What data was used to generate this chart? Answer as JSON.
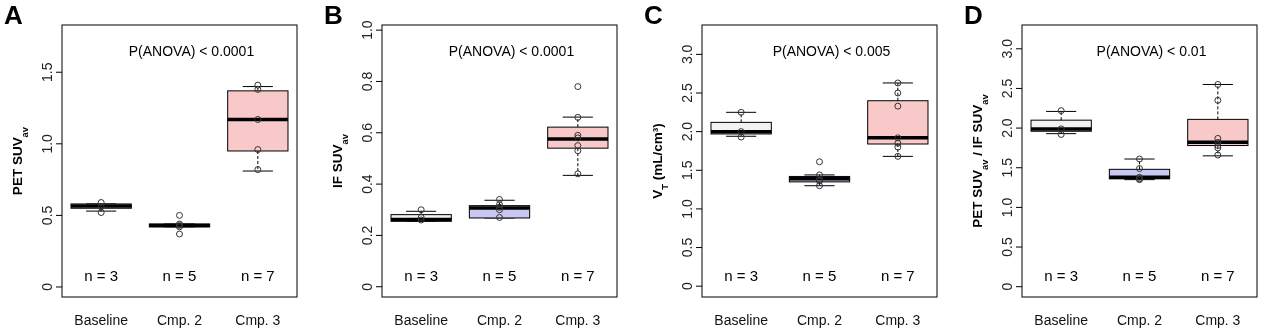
{
  "chart_data": [
    {
      "type": "box",
      "title": "A",
      "ylabel": "PET SUV$_{av}$",
      "categories": [
        "Baseline",
        "Cmp. 2",
        "Cmp. 3"
      ],
      "colors": [
        "#f2f2f2",
        "#c8c8f2",
        "#f9c9c9"
      ],
      "boxes": [
        {
          "low": 0.53,
          "q1": 0.55,
          "median": 0.565,
          "q3": 0.58,
          "high": 0.58
        },
        {
          "low": 0.42,
          "q1": 0.42,
          "median": 0.43,
          "q3": 0.44,
          "high": 0.44
        },
        {
          "low": 0.81,
          "q1": 0.95,
          "median": 1.17,
          "q3": 1.37,
          "high": 1.4
        }
      ],
      "series": [
        {
          "type": "scatter",
          "color": "#333333",
          "x": [
            "Baseline",
            "Baseline",
            "Baseline",
            "Cmp. 2",
            "Cmp. 2",
            "Cmp. 2",
            "Cmp. 2",
            "Cmp. 2",
            "Cmp. 3",
            "Cmp. 3",
            "Cmp. 3",
            "Cmp. 3",
            "Cmp. 3"
          ],
          "values": [
            0.52,
            0.56,
            0.59,
            0.37,
            0.42,
            0.43,
            0.44,
            0.5,
            1.41,
            1.38,
            1.17,
            0.96,
            0.82
          ]
        }
      ],
      "marker": "circle",
      "ylim": [
        -0.07,
        1.83
      ],
      "yticks": [
        0,
        0.5,
        {
          "value": 1,
          "label": "1.0"
        },
        1.5
      ],
      "annotations": [
        "P(ANOVA) < 0.0001",
        "n = 3",
        "n = 5",
        "n = 7"
      ]
    },
    {
      "type": "box",
      "title": "B",
      "ylabel": "IF SUV$_{av}$",
      "categories": [
        "Baseline",
        "Cmp. 2",
        "Cmp. 3"
      ],
      "colors": [
        "#f2f2f2",
        "#c8c8f2",
        "#f9c9c9"
      ],
      "boxes": [
        {
          "low": 0.255,
          "q1": 0.255,
          "median": 0.262,
          "q3": 0.281,
          "high": 0.294
        },
        {
          "low": 0.268,
          "q1": 0.268,
          "median": 0.307,
          "q3": 0.316,
          "high": 0.337
        },
        {
          "low": 0.434,
          "q1": 0.54,
          "median": 0.576,
          "q3": 0.622,
          "high": 0.661
        }
      ],
      "series": [
        {
          "type": "scatter",
          "color": "#333333",
          "x": [
            "Baseline",
            "Baseline",
            "Baseline",
            "Cmp. 2",
            "Cmp. 2",
            "Cmp. 2",
            "Cmp. 2",
            "Cmp. 2",
            "Cmp. 3",
            "Cmp. 3",
            "Cmp. 3",
            "Cmp. 3",
            "Cmp. 3",
            "Cmp. 3",
            "Cmp. 3"
          ],
          "values": [
            0.3,
            0.27,
            0.26,
            0.34,
            0.32,
            0.31,
            0.3,
            0.27,
            0.78,
            0.66,
            0.59,
            0.58,
            0.55,
            0.53,
            0.44
          ]
        }
      ],
      "marker": "circle",
      "ylim": [
        -0.04,
        1.02
      ],
      "yticks": [
        0,
        0.2,
        0.4,
        0.6,
        0.8,
        {
          "value": 1,
          "label": "1.0"
        }
      ],
      "annotations": [
        "P(ANOVA) < 0.0001",
        "n = 3",
        "n = 5",
        "n = 7"
      ]
    },
    {
      "type": "box",
      "title": "C",
      "ylabel": "V$_{T}$ (mL/cm³)",
      "categories": [
        "Baseline",
        "Cmp. 2",
        "Cmp. 3"
      ],
      "colors": [
        "#f2f2f2",
        "#c8c8f2",
        "#f9c9c9"
      ],
      "boxes": [
        {
          "low": 1.94,
          "q1": 1.97,
          "median": 2.0,
          "q3": 2.12,
          "high": 2.25
        },
        {
          "low": 1.3,
          "q1": 1.35,
          "median": 1.39,
          "q3": 1.42,
          "high": 1.44
        },
        {
          "low": 1.68,
          "q1": 1.84,
          "median": 1.92,
          "q3": 2.4,
          "high": 2.63
        }
      ],
      "series": [
        {
          "type": "scatter",
          "color": "#333333",
          "x": [
            "Baseline",
            "Baseline",
            "Baseline",
            "Cmp. 2",
            "Cmp. 2",
            "Cmp. 2",
            "Cmp. 2",
            "Cmp. 2",
            "Cmp. 3",
            "Cmp. 3",
            "Cmp. 3",
            "Cmp. 3",
            "Cmp. 3",
            "Cmp. 3",
            "Cmp. 3"
          ],
          "values": [
            2.25,
            2.0,
            1.93,
            1.61,
            1.44,
            1.38,
            1.36,
            1.3,
            2.63,
            2.5,
            2.33,
            1.92,
            1.85,
            1.8,
            1.68
          ]
        }
      ],
      "marker": "circle",
      "ylim": [
        -0.14,
        3.38
      ],
      "yticks": [
        0,
        0.5,
        {
          "value": 1,
          "label": "1.0"
        },
        1.5,
        {
          "value": 2,
          "label": "2.0"
        },
        2.5,
        {
          "value": 3,
          "label": "3.0"
        }
      ],
      "annotations": [
        "P(ANOVA) < 0.005",
        "n = 3",
        "n = 5",
        "n = 7"
      ]
    },
    {
      "type": "box",
      "title": "D",
      "ylabel": "PET SUV$_{av}$ / IF SUV$_{av}$",
      "categories": [
        "Baseline",
        "Cmp. 2",
        "Cmp. 3"
      ],
      "colors": [
        "#f2f2f2",
        "#c8c8f2",
        "#f9c9c9"
      ],
      "boxes": [
        {
          "low": 1.93,
          "q1": 1.96,
          "median": 1.99,
          "q3": 2.1,
          "high": 2.21
        },
        {
          "low": 1.35,
          "q1": 1.36,
          "median": 1.38,
          "q3": 1.48,
          "high": 1.61
        },
        {
          "low": 1.65,
          "q1": 1.78,
          "median": 1.82,
          "q3": 2.11,
          "high": 2.55
        }
      ],
      "series": [
        {
          "type": "scatter",
          "color": "#333333",
          "x": [
            "Baseline",
            "Baseline",
            "Baseline",
            "Cmp. 2",
            "Cmp. 2",
            "Cmp. 2",
            "Cmp. 2",
            "Cmp. 2",
            "Cmp. 3",
            "Cmp. 3",
            "Cmp. 3",
            "Cmp. 3",
            "Cmp. 3",
            "Cmp. 3",
            "Cmp. 3"
          ],
          "values": [
            2.22,
            1.99,
            1.92,
            1.61,
            1.49,
            1.38,
            1.36,
            1.35,
            2.55,
            2.35,
            1.87,
            1.82,
            1.78,
            1.75,
            1.66
          ]
        }
      ],
      "marker": "circle",
      "ylim": [
        -0.13,
        3.3
      ],
      "yticks": [
        0,
        0.5,
        {
          "value": 1,
          "label": "1.0"
        },
        1.5,
        {
          "value": 2,
          "label": "2.0"
        },
        2.5,
        {
          "value": 3,
          "label": "3.0"
        }
      ],
      "annotations": [
        "P(ANOVA) < 0.01",
        "n = 3",
        "n = 5",
        "n = 7"
      ]
    }
  ]
}
